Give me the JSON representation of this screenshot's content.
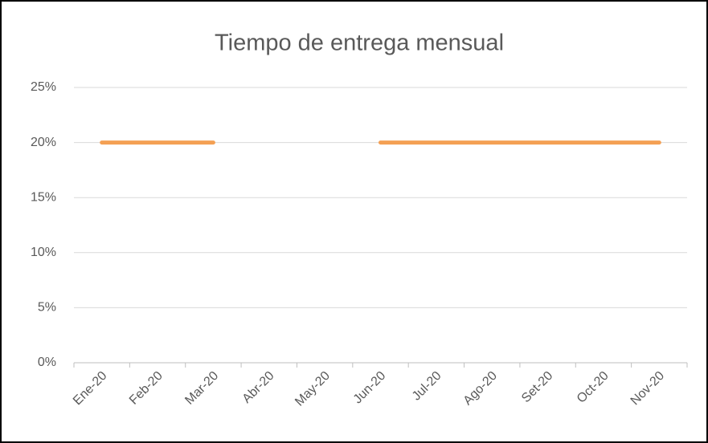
{
  "chart_data": {
    "type": "line",
    "title": "Tiempo de entrega mensual",
    "categories": [
      "Ene-20",
      "Feb-20",
      "Mar-20",
      "Abr-20",
      "May-20",
      "Jun-20",
      "Jul-20",
      "Ago-20",
      "Set-20",
      "Oct-20",
      "Nov-20"
    ],
    "values": [
      20,
      20,
      20,
      null,
      null,
      20,
      20,
      20,
      20,
      20,
      20
    ],
    "color": "#f4a054",
    "ylim": [
      0,
      25
    ],
    "yticks": [
      {
        "value": 0,
        "label": "0%"
      },
      {
        "value": 5,
        "label": "5%"
      },
      {
        "value": 10,
        "label": "10%"
      },
      {
        "value": 15,
        "label": "15%"
      },
      {
        "value": 20,
        "label": "20%"
      },
      {
        "value": 25,
        "label": "25%"
      }
    ],
    "grid": true
  }
}
